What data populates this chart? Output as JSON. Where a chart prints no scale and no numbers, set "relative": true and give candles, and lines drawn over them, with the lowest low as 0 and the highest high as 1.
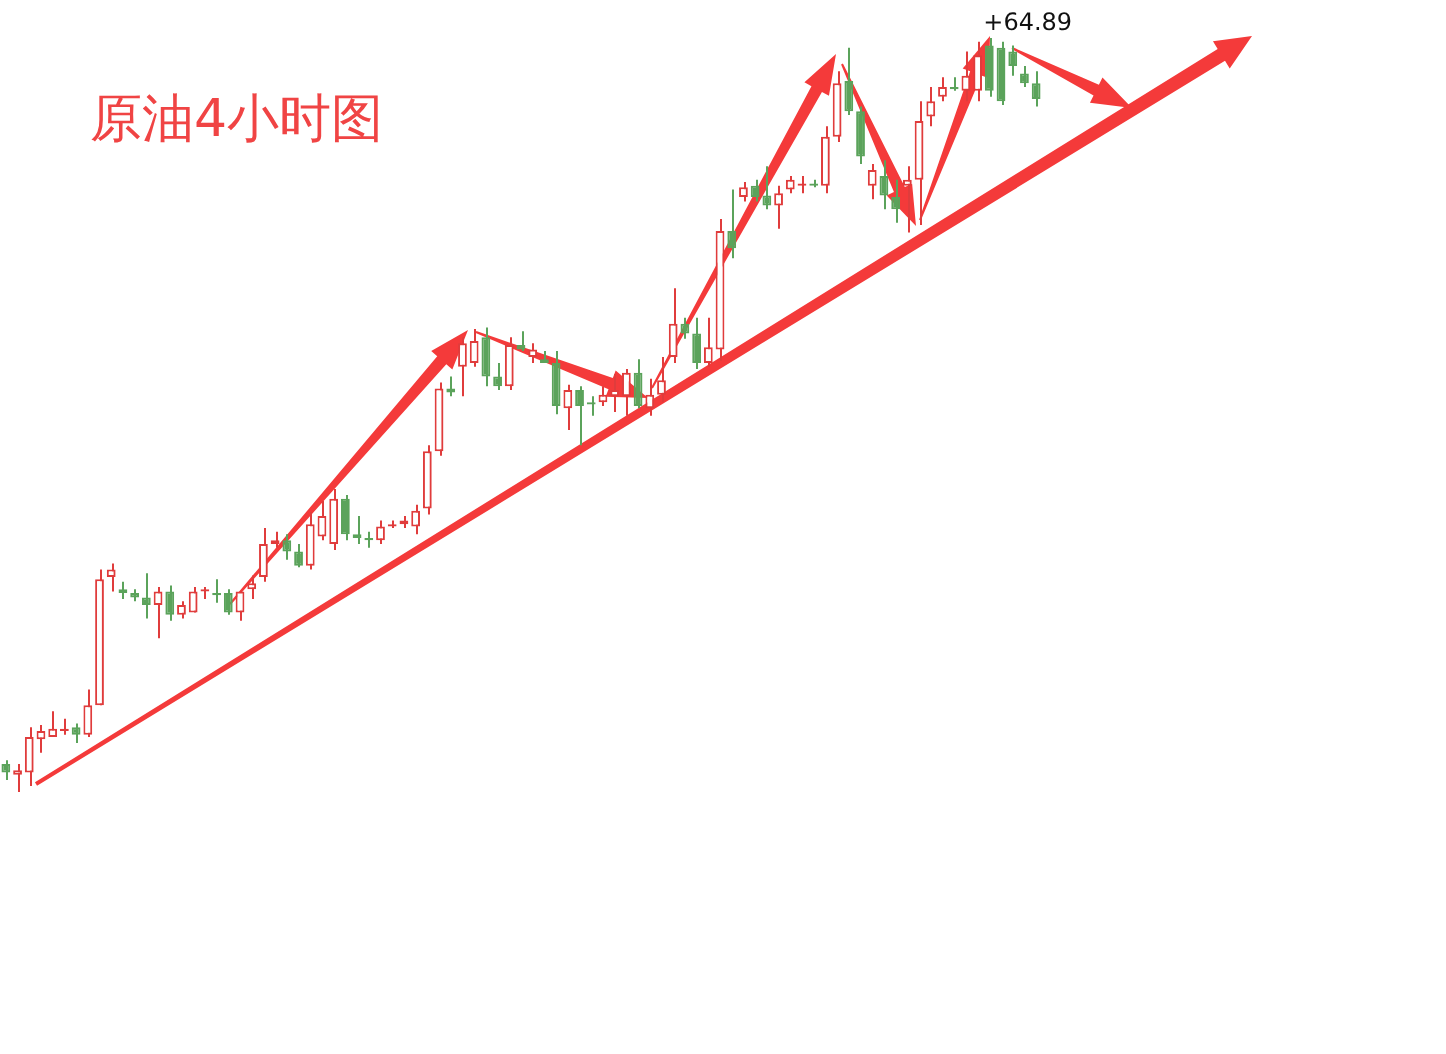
{
  "chart_data": {
    "type": "candlestick",
    "title": "原油4小时图",
    "relative": true,
    "categories": [
      null,
      null,
      null,
      null,
      null,
      null,
      null,
      null,
      null,
      null,
      null,
      null,
      null,
      null,
      null,
      null,
      null,
      null,
      null,
      null,
      null,
      null,
      null,
      null,
      null,
      null,
      null,
      null,
      null,
      null,
      null,
      null,
      null,
      null,
      null,
      null,
      null,
      null,
      null,
      null,
      null,
      null,
      null,
      null,
      null,
      null,
      null,
      null,
      null,
      null,
      null,
      null,
      null,
      null,
      null,
      null,
      null,
      null,
      null,
      null,
      null,
      null,
      null,
      null,
      null,
      null,
      null,
      null,
      null,
      null,
      null,
      null,
      null,
      null,
      null,
      null,
      null,
      null,
      null,
      null,
      null,
      null,
      null,
      null,
      null,
      null,
      null,
      null,
      null
    ],
    "ohlc": [
      [
        0.037,
        0.042,
        0.016,
        0.026
      ],
      [
        0.023,
        0.037,
        0,
        0.029
      ],
      [
        0.026,
        0.086,
        0.008,
        0.073
      ],
      [
        0.07,
        0.089,
        0.052,
        0.081
      ],
      [
        0.073,
        0.107,
        0.073,
        0.084
      ],
      [
        0.081,
        0.097,
        0.076,
        0.084
      ],
      [
        0.086,
        0.091,
        0.065,
        0.076
      ],
      [
        0.076,
        0.136,
        0.073,
        0.115
      ],
      [
        0.115,
        0.295,
        0.115,
        0.282
      ],
      [
        0.285,
        0.303,
        0.266,
        0.295
      ],
      [
        0.269,
        0.279,
        0.256,
        0.264
      ],
      [
        0.264,
        0.269,
        0.253,
        0.258
      ],
      [
        0.258,
        0.29,
        0.23,
        0.248
      ],
      [
        0.248,
        0.272,
        0.204,
        0.266
      ],
      [
        0.266,
        0.274,
        0.227,
        0.235
      ],
      [
        0.235,
        0.253,
        0.23,
        0.248
      ],
      [
        0.238,
        0.272,
        0.238,
        0.266
      ],
      [
        0.266,
        0.272,
        0.256,
        0.269
      ],
      [
        0.264,
        0.282,
        0.251,
        0.261
      ],
      [
        0.264,
        0.269,
        0.235,
        0.238
      ],
      [
        0.238,
        0.266,
        0.227,
        0.266
      ],
      [
        0.269,
        0.287,
        0.256,
        0.277
      ],
      [
        0.285,
        0.35,
        0.279,
        0.329
      ],
      [
        0.329,
        0.345,
        0.324,
        0.334
      ],
      [
        0.334,
        0.342,
        0.308,
        0.319
      ],
      [
        0.319,
        0.329,
        0.298,
        0.3
      ],
      [
        0.3,
        0.371,
        0.295,
        0.355
      ],
      [
        0.339,
        0.386,
        0.334,
        0.366
      ],
      [
        0.329,
        0.402,
        0.321,
        0.389
      ],
      [
        0.389,
        0.394,
        0.334,
        0.342
      ],
      [
        0.342,
        0.366,
        0.329,
        0.337
      ],
      [
        0.337,
        0.345,
        0.324,
        0.334
      ],
      [
        0.334,
        0.36,
        0.329,
        0.352
      ],
      [
        0.352,
        0.36,
        0.35,
        0.355
      ],
      [
        0.355,
        0.366,
        0.35,
        0.36
      ],
      [
        0.352,
        0.381,
        0.342,
        0.373
      ],
      [
        0.376,
        0.46,
        0.368,
        0.452
      ],
      [
        0.452,
        0.543,
        0.446,
        0.535
      ],
      [
        0.535,
        0.551,
        0.525,
        0.53
      ],
      [
        0.564,
        0.603,
        0.525,
        0.595
      ],
      [
        0.569,
        0.614,
        0.564,
        0.598
      ],
      [
        0.603,
        0.616,
        0.538,
        0.551
      ],
      [
        0.551,
        0.569,
        0.533,
        0.538
      ],
      [
        0.538,
        0.603,
        0.533,
        0.593
      ],
      [
        0.593,
        0.611,
        0.585,
        0.587
      ],
      [
        0.577,
        0.595,
        0.569,
        0.587
      ],
      [
        0.574,
        0.585,
        0.569,
        0.569
      ],
      [
        0.569,
        0.585,
        0.501,
        0.512
      ],
      [
        0.509,
        0.54,
        0.48,
        0.533
      ],
      [
        0.533,
        0.538,
        0.46,
        0.512
      ],
      [
        0.517,
        0.525,
        0.499,
        0.514
      ],
      [
        0.517,
        0.538,
        0.512,
        0.527
      ],
      [
        0.525,
        0.554,
        0.504,
        0.533
      ],
      [
        0.525,
        0.561,
        0.499,
        0.556
      ],
      [
        0.556,
        0.574,
        0.509,
        0.512
      ],
      [
        0.509,
        0.548,
        0.499,
        0.527
      ],
      [
        0.527,
        0.577,
        0.517,
        0.546
      ],
      [
        0.577,
        0.668,
        0.569,
        0.621
      ],
      [
        0.621,
        0.629,
        0.601,
        0.608
      ],
      [
        0.608,
        0.629,
        0.561,
        0.569
      ],
      [
        0.569,
        0.629,
        0.564,
        0.59
      ],
      [
        0.587,
        0.76,
        0.572,
        0.744
      ],
      [
        0.744,
        0.799,
        0.708,
        0.721
      ],
      [
        0.789,
        0.809,
        0.783,
        0.802
      ],
      [
        0.804,
        0.812,
        0.783,
        0.789
      ],
      [
        0.791,
        0.83,
        0.773,
        0.778
      ],
      [
        0.778,
        0.804,
        0.747,
        0.794
      ],
      [
        0.799,
        0.817,
        0.794,
        0.812
      ],
      [
        0.804,
        0.817,
        0.794,
        0.807
      ],
      [
        0.807,
        0.812,
        0.802,
        0.804
      ],
      [
        0.804,
        0.883,
        0.794,
        0.869
      ],
      [
        0.869,
        0.956,
        0.862,
        0.94
      ],
      [
        0.943,
        0.987,
        0.898,
        0.903
      ],
      [
        0.903,
        0.909,
        0.833,
        0.843
      ],
      [
        0.804,
        0.833,
        0.786,
        0.825
      ],
      [
        0.817,
        0.838,
        0.773,
        0.791
      ],
      [
        0.789,
        0.812,
        0.755,
        0.773
      ],
      [
        0.804,
        0.83,
        0.742,
        0.812
      ],
      [
        0.812,
        0.916,
        0.752,
        0.89
      ],
      [
        0.896,
        0.935,
        0.883,
        0.916
      ],
      [
        0.922,
        0.948,
        0.916,
        0.935
      ],
      [
        0.935,
        0.948,
        0.93,
        0.932
      ],
      [
        0.93,
        0.982,
        0.916,
        0.95
      ],
      [
        0.93,
        0.995,
        0.916,
        0.977
      ],
      [
        0.99,
        1,
        0.922,
        0.93
      ],
      [
        0.987,
        0.995,
        0.911,
        0.916
      ],
      [
        0.982,
        0.99,
        0.95,
        0.963
      ],
      [
        0.953,
        0.963,
        0.935,
        0.94
      ],
      [
        0.94,
        0.956,
        0.909,
        0.919
      ]
    ],
    "colors": [
      "#5ba35b",
      "#e03c3c",
      "#e03c3c",
      "#e03c3c",
      "#e03c3c",
      "#e03c3c",
      "#5ba35b",
      "#e03c3c",
      "#e03c3c",
      "#e03c3c",
      "#5ba35b",
      "#5ba35b",
      "#5ba35b",
      "#e03c3c",
      "#5ba35b",
      "#e03c3c",
      "#e03c3c",
      "#e03c3c",
      "#5ba35b",
      "#5ba35b",
      "#e03c3c",
      "#e03c3c",
      "#e03c3c",
      "#e03c3c",
      "#5ba35b",
      "#5ba35b",
      "#e03c3c",
      "#e03c3c",
      "#e03c3c",
      "#5ba35b",
      "#5ba35b",
      "#5ba35b",
      "#e03c3c",
      "#e03c3c",
      "#e03c3c",
      "#e03c3c",
      "#e03c3c",
      "#e03c3c",
      "#5ba35b",
      "#e03c3c",
      "#e03c3c",
      "#5ba35b",
      "#5ba35b",
      "#e03c3c",
      "#5ba35b",
      "#e03c3c",
      "#5ba35b",
      "#5ba35b",
      "#e03c3c",
      "#5ba35b",
      "#5ba35b",
      "#e03c3c",
      "#e03c3c",
      "#e03c3c",
      "#5ba35b",
      "#e03c3c",
      "#e03c3c",
      "#e03c3c",
      "#5ba35b",
      "#5ba35b",
      "#e03c3c",
      "#e03c3c",
      "#5ba35b",
      "#e03c3c",
      "#5ba35b",
      "#5ba35b",
      "#e03c3c",
      "#e03c3c",
      "#e03c3c",
      "#5ba35b",
      "#e03c3c",
      "#e03c3c",
      "#5ba35b",
      "#5ba35b",
      "#e03c3c",
      "#5ba35b",
      "#5ba35b",
      "#e03c3c",
      "#e03c3c",
      "#e03c3c",
      "#e03c3c",
      "#5ba35b",
      "#e03c3c",
      "#e03c3c",
      "#5ba35b",
      "#5ba35b",
      "#5ba35b",
      "#5ba35b",
      "#5ba35b"
    ],
    "annotations": [
      "+64.89"
    ]
  }
}
